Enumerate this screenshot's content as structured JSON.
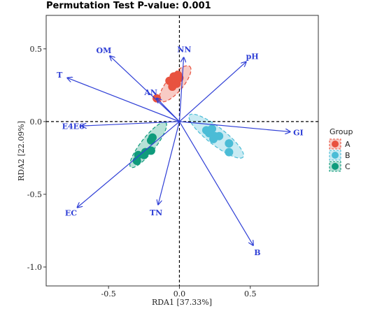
{
  "chart_data": {
    "type": "scatter",
    "title": "Permutation Test P-value: 0.001",
    "xlabel": "RDA1 [37.33%]",
    "ylabel": "RDA2 [22.09%]",
    "xlim": [
      -0.94,
      0.98
    ],
    "ylim": [
      -1.13,
      0.73
    ],
    "xticks": [
      -0.5,
      0.0,
      0.5
    ],
    "xtick_labels": [
      "-0.5",
      "0.0",
      "0.5"
    ],
    "yticks": [
      -1.0,
      -0.5,
      0.0,
      0.5
    ],
    "ytick_labels": [
      "-1.0",
      "-0.5",
      "0.0",
      "0.5"
    ],
    "grid": false,
    "reference_lines": {
      "x": 0,
      "y": 0,
      "style": "dashed"
    },
    "legend": {
      "title": "Group",
      "placement": "right",
      "entries": [
        {
          "label": "A",
          "color": "#e8523f"
        },
        {
          "label": "B",
          "color": "#4bbcd6"
        },
        {
          "label": "C",
          "color": "#0f9b7c"
        }
      ]
    },
    "series": [
      {
        "group": "A",
        "color": "#e8523f",
        "points": [
          [
            -0.16,
            0.16
          ],
          [
            -0.05,
            0.24
          ],
          [
            -0.02,
            0.26
          ],
          [
            0.0,
            0.3
          ],
          [
            -0.04,
            0.31
          ],
          [
            -0.01,
            0.32
          ],
          [
            -0.07,
            0.28
          ]
        ],
        "ellipse": {
          "cx": -0.03,
          "cy": 0.26,
          "rx": 0.16,
          "ry": 0.055,
          "angle_deg": 50
        }
      },
      {
        "group": "B",
        "color": "#4bbcd6",
        "points": [
          [
            0.19,
            -0.06
          ],
          [
            0.21,
            -0.08
          ],
          [
            0.23,
            -0.05
          ],
          [
            0.25,
            -0.1
          ],
          [
            0.28,
            -0.1
          ],
          [
            0.24,
            -0.12
          ],
          [
            0.35,
            -0.15
          ],
          [
            0.35,
            -0.21
          ]
        ],
        "ellipse": {
          "cx": 0.26,
          "cy": -0.1,
          "rx": 0.24,
          "ry": 0.06,
          "angle_deg": -38
        }
      },
      {
        "group": "C",
        "color": "#0f9b7c",
        "points": [
          [
            -0.29,
            -0.23
          ],
          [
            -0.3,
            -0.27
          ],
          [
            -0.24,
            -0.21
          ],
          [
            -0.2,
            -0.2
          ],
          [
            -0.19,
            -0.11
          ],
          [
            -0.2,
            -0.13
          ],
          [
            -0.25,
            -0.23
          ]
        ],
        "ellipse": {
          "cx": -0.22,
          "cy": -0.16,
          "rx": 0.2,
          "ry": 0.05,
          "angle_deg": 52
        }
      }
    ],
    "arrows": [
      {
        "label": "NN",
        "x": 0.03,
        "y": 0.44
      },
      {
        "label": "pH",
        "x": 0.47,
        "y": 0.41
      },
      {
        "label": "OM",
        "x": -0.49,
        "y": 0.45
      },
      {
        "label": "T",
        "x": -0.79,
        "y": 0.3
      },
      {
        "label": "AN",
        "x": -0.16,
        "y": 0.16
      },
      {
        "label": "E4E6",
        "x": -0.69,
        "y": -0.03
      },
      {
        "label": "GI",
        "x": 0.78,
        "y": -0.07
      },
      {
        "label": "EC",
        "x": -0.72,
        "y": -0.59
      },
      {
        "label": "TN",
        "x": -0.15,
        "y": -0.57
      },
      {
        "label": "B",
        "x": 0.52,
        "y": -0.85
      }
    ],
    "arrow_color": "#2f3fd6"
  }
}
